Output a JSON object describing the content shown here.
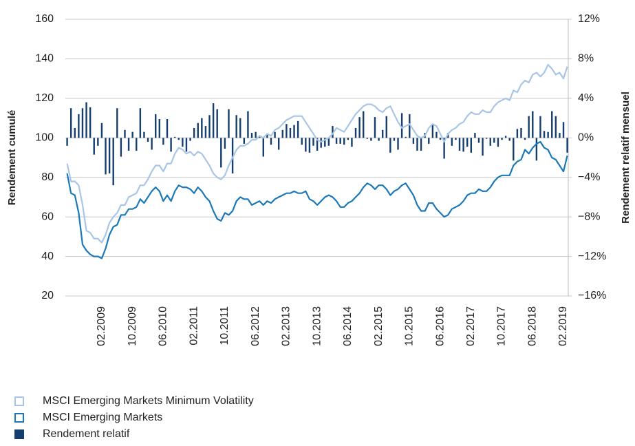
{
  "chart_data": {
    "type": "line",
    "ylabel": "Rendement cumulé",
    "y2label": "Rendement relatif mensuel",
    "categories": [
      null,
      null,
      null,
      null,
      null,
      null,
      null,
      null,
      null,
      "02.2009",
      null,
      null,
      null,
      null,
      null,
      null,
      null,
      "10.2009",
      null,
      null,
      null,
      null,
      null,
      null,
      null,
      "06.2010",
      null,
      null,
      null,
      null,
      null,
      null,
      null,
      "02.2011",
      null,
      null,
      null,
      null,
      null,
      null,
      null,
      "10.2011",
      null,
      null,
      null,
      null,
      null,
      null,
      null,
      "06.2012",
      null,
      null,
      null,
      null,
      null,
      null,
      null,
      "02.2013",
      null,
      null,
      null,
      null,
      null,
      null,
      null,
      "10.2013",
      null,
      null,
      null,
      null,
      null,
      null,
      null,
      "06.2014",
      null,
      null,
      null,
      null,
      null,
      null,
      null,
      "02.2015",
      null,
      null,
      null,
      null,
      null,
      null,
      null,
      "10.2015",
      null,
      null,
      null,
      null,
      null,
      null,
      null,
      "06.2016",
      null,
      null,
      null,
      null,
      null,
      null,
      null,
      "02.2017",
      null,
      null,
      null,
      null,
      null,
      null,
      null,
      "10.2017",
      null,
      null,
      null,
      null,
      null,
      null,
      null,
      "06.2018",
      null,
      null,
      null,
      null,
      null,
      null,
      null,
      "02.2019",
      null
    ],
    "series": [
      {
        "name": "MSCI Emerging Markets Minimum Volatility",
        "type": "line",
        "color": "#a9c5e6",
        "values": [
          87,
          78,
          78,
          76,
          66,
          53,
          52,
          49,
          49,
          47,
          51,
          57,
          60,
          62,
          66,
          66,
          70,
          71,
          72,
          76,
          76,
          79,
          83,
          86,
          86,
          83,
          87,
          87,
          92,
          95,
          94,
          92,
          93,
          91,
          93,
          92,
          89,
          86,
          82,
          80,
          79,
          81,
          86,
          90,
          94,
          96,
          96,
          97,
          99,
          99,
          101,
          100,
          102,
          101,
          104,
          105,
          107,
          109,
          110,
          111,
          111,
          111,
          108,
          105,
          102,
          99,
          98,
          99,
          100,
          102,
          105,
          104,
          103,
          106,
          109,
          112,
          114,
          116,
          117,
          117,
          116,
          114,
          113,
          115,
          116,
          112,
          108,
          105,
          106,
          107,
          104,
          101,
          100,
          101,
          105,
          107,
          106,
          102,
          98,
          102,
          104,
          105,
          107,
          108,
          111,
          113,
          112,
          112,
          114,
          113,
          113,
          116,
          118,
          119,
          120,
          119,
          124,
          123,
          127,
          129,
          128,
          132,
          133,
          131,
          133,
          137,
          135,
          132,
          133,
          130,
          136
        ]
      },
      {
        "name": "MSCI Emerging Markets",
        "type": "line",
        "color": "#1a78b8",
        "values": [
          82,
          72,
          71,
          62,
          46,
          43,
          41,
          40,
          40,
          39,
          44,
          51,
          55,
          56,
          61,
          61,
          64,
          64,
          65,
          69,
          67,
          70,
          73,
          75,
          73,
          68,
          71,
          68,
          73,
          76,
          75,
          75,
          74,
          72,
          75,
          73,
          70,
          68,
          63,
          59,
          58,
          62,
          61,
          63,
          68,
          70,
          69,
          69,
          66,
          67,
          68,
          66,
          68,
          67,
          69,
          70,
          71,
          72,
          72,
          73,
          72,
          72,
          73,
          69,
          68,
          66,
          68,
          70,
          71,
          70,
          68,
          65,
          65,
          67,
          68,
          70,
          72,
          75,
          77,
          76,
          74,
          76,
          76,
          74,
          71,
          73,
          74,
          76,
          77,
          74,
          71,
          66,
          63,
          63,
          67,
          67,
          64,
          62,
          60,
          61,
          64,
          65,
          66,
          68,
          71,
          72,
          72,
          74,
          73,
          73,
          75,
          78,
          80,
          81,
          81,
          81,
          86,
          88,
          89,
          94,
          92,
          95,
          97,
          98,
          95,
          94,
          90,
          89,
          86,
          83,
          91
        ]
      },
      {
        "name": "Rendement relatif",
        "type": "bar",
        "axis": "y2",
        "color": "#153e6e",
        "values": [
          -0.8,
          3.0,
          1.0,
          2.4,
          3.0,
          3.6,
          3.1,
          -1.7,
          -0.8,
          1.5,
          -3.7,
          -3.6,
          -4.8,
          3.0,
          -1.9,
          0.8,
          -1.3,
          0.6,
          -1.3,
          3.0,
          0.6,
          -0.4,
          -1.2,
          2.4,
          1.9,
          -0.7,
          1.9,
          -1.4,
          0.1,
          -0.2,
          -0.9,
          -1.4,
          -0.3,
          1.0,
          1.5,
          2.0,
          1.2,
          2.3,
          3.5,
          2.9,
          -3.0,
          -1.1,
          2.9,
          -3.6,
          2.3,
          2.0,
          -0.6,
          2.7,
          0.5,
          0.6,
          0.2,
          -1.9,
          0.3,
          -0.7,
          0.6,
          -1.2,
          0.8,
          1.4,
          1.0,
          1.3,
          1.7,
          -0.7,
          -1.4,
          -1.5,
          -0.8,
          -1.3,
          -1.0,
          -0.9,
          -0.8,
          1.2,
          -0.6,
          -0.6,
          -0.7,
          -0.2,
          -0.9,
          1.0,
          2.1,
          2.7,
          -0.1,
          -0.3,
          2.1,
          -0.3,
          0.8,
          2.2,
          -1.5,
          -0.3,
          -1.2,
          2.5,
          0.1,
          2.4,
          -0.6,
          -1.3,
          -1.3,
          0.5,
          -0.6,
          1.4,
          0.6,
          -0.2,
          -2.1,
          0.5,
          -0.8,
          -0.2,
          -1.3,
          -1.4,
          -0.9,
          -1.5,
          0.5,
          -0.5,
          -1.8,
          -0.1,
          -0.8,
          -0.5,
          -0.9,
          -0.2,
          0.2,
          -0.3,
          -2.3,
          0.9,
          1.0,
          -0.2,
          2.2,
          2.7,
          -2.3,
          2.2,
          0.7,
          0.6,
          2.7,
          2.2,
          0.5,
          1.6,
          -1.5
        ]
      }
    ],
    "ylim": [
      20,
      160
    ],
    "yticks": [
      20,
      40,
      60,
      80,
      100,
      120,
      140,
      160
    ],
    "y2lim": [
      -16,
      12
    ],
    "y2ticks": [
      {
        "value": -16,
        "label": "−16%"
      },
      {
        "value": -12,
        "label": "−12%"
      },
      {
        "value": -8,
        "label": "−8%"
      },
      {
        "value": -4,
        "label": "−4%"
      },
      {
        "value": 0,
        "label": "0%"
      },
      {
        "value": 4,
        "label": "4%"
      },
      {
        "value": 8,
        "label": "8%"
      },
      {
        "value": 12,
        "label": "12%"
      }
    ],
    "grid": true,
    "legend": "bottom-left"
  }
}
